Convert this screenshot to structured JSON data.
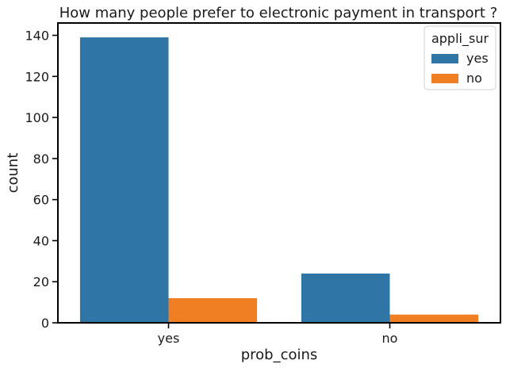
{
  "chart_data": {
    "type": "bar",
    "title": "How many people prefer to electronic payment in transport ?",
    "xlabel": "prob_coins",
    "ylabel": "count",
    "categories": [
      "yes",
      "no"
    ],
    "series": [
      {
        "name": "yes",
        "color": "#2f75a6",
        "values": [
          139,
          24
        ]
      },
      {
        "name": "no",
        "color": "#f07f24",
        "values": [
          12,
          4
        ]
      }
    ],
    "ylim": [
      0,
      146
    ],
    "yticks": [
      0,
      20,
      40,
      60,
      80,
      100,
      120,
      140
    ],
    "grid": false,
    "legend": {
      "title": "appli_sur",
      "placement": "top-right"
    }
  }
}
